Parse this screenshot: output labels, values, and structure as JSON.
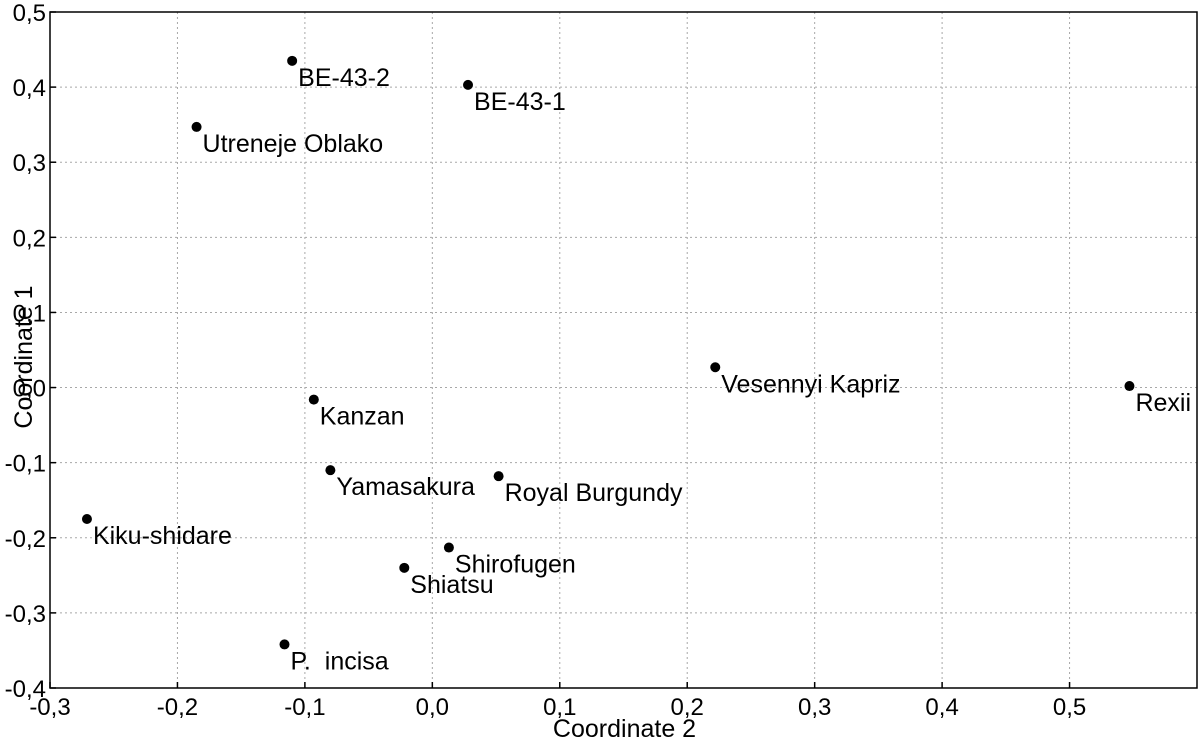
{
  "chart_data": {
    "type": "scatter",
    "xlabel": "Coordinate 2",
    "ylabel": "Coordinate 1",
    "xlim": [
      -0.3,
      0.6
    ],
    "ylim": [
      -0.4,
      0.5
    ],
    "grid": true,
    "x_ticks": [
      "-0,3",
      "-0,2",
      "-0,1",
      "0,0",
      "0,1",
      "0,2",
      "0,3",
      "0,4",
      "0,5"
    ],
    "y_ticks": [
      "-0,4",
      "-0,3",
      "-0,2",
      "-0,1",
      "0,0",
      "0,1",
      "0,2",
      "0,3",
      "0,4",
      "0,5"
    ],
    "points": [
      {
        "label": "BE-43-2",
        "x": -0.11,
        "y": 0.435
      },
      {
        "label": "BE-43-1",
        "x": 0.028,
        "y": 0.403
      },
      {
        "label": "Utreneje Oblako",
        "x": -0.185,
        "y": 0.347
      },
      {
        "label": "Vesennyi Kapriz",
        "x": 0.222,
        "y": 0.027
      },
      {
        "label": "Rexii",
        "x": 0.547,
        "y": 0.002
      },
      {
        "label": "Kanzan",
        "x": -0.093,
        "y": -0.016
      },
      {
        "label": "Yamasakura",
        "x": -0.08,
        "y": -0.11
      },
      {
        "label": "Royal Burgundy",
        "x": 0.052,
        "y": -0.118
      },
      {
        "label": "Kiku-shidare",
        "x": -0.271,
        "y": -0.175
      },
      {
        "label": "Shirofugen",
        "x": 0.013,
        "y": -0.213
      },
      {
        "label": "Shiatsu",
        "x": -0.022,
        "y": -0.24
      },
      {
        "label": "P.  incisa",
        "x": -0.116,
        "y": -0.342
      }
    ]
  }
}
